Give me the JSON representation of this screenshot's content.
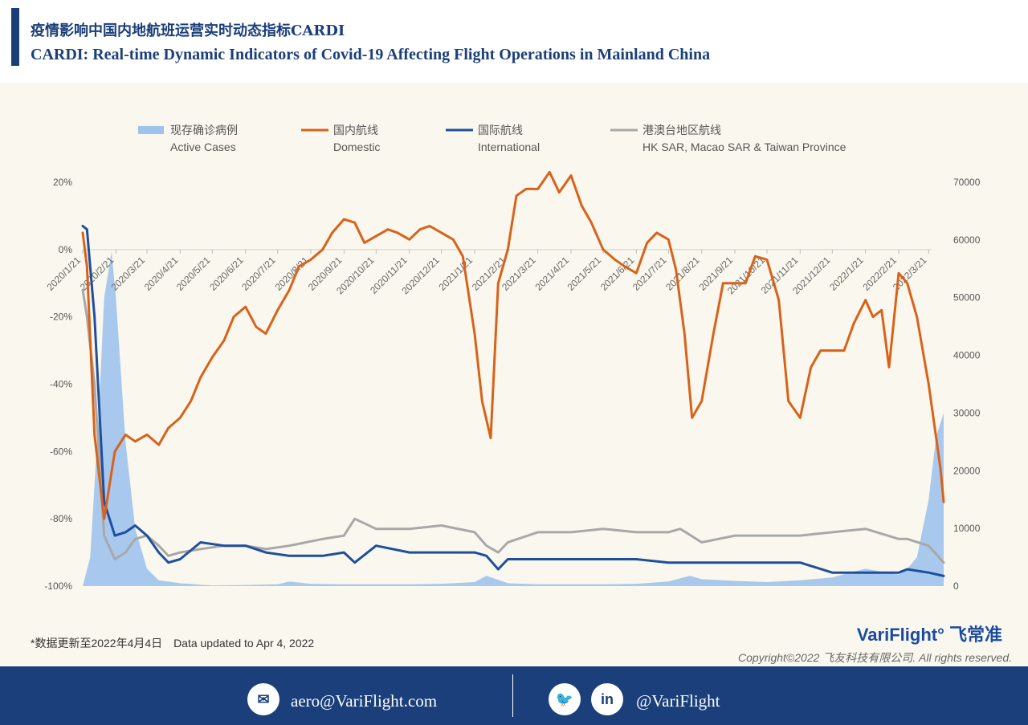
{
  "header": {
    "title_cn": "疫情影响中国内地航班运营实时动态指标CARDI",
    "title_en": "CARDI: Real-time Dynamic Indicators of Covid-19 Affecting Flight Operations in Mainland China"
  },
  "colors": {
    "active": "#9fc3ec",
    "domestic": "#d9621a",
    "international": "#1f4f9c",
    "regional": "#a8a8a8",
    "brand": "#1b3f7a"
  },
  "legend": [
    {
      "key": "active",
      "cn": "现存确诊病例",
      "en": "Active Cases"
    },
    {
      "key": "domestic",
      "cn": "国内航线",
      "en": "Domestic"
    },
    {
      "key": "international",
      "cn": "国际航线",
      "en": "International"
    },
    {
      "key": "regional",
      "cn": "港澳台地区航线",
      "en": "HK SAR, Macao SAR & Taiwan Province"
    }
  ],
  "chart_data": {
    "type": "line",
    "x_tick_labels": [
      "2020/1/21",
      "2020/2/21",
      "2020/3/21",
      "2020/4/21",
      "2020/5/21",
      "2020/6/21",
      "2020/7/21",
      "2020/8/21",
      "2020/9/21",
      "2020/10/21",
      "2020/11/21",
      "2020/12/21",
      "2021/1/21",
      "2021/2/21",
      "2021/3/21",
      "2021/4/21",
      "2021/5/21",
      "2021/6/21",
      "2021/7/21",
      "2021/8/21",
      "2021/9/21",
      "2021/10/21",
      "2021/11/21",
      "2021/12/21",
      "2022/1/21",
      "2022/2/21",
      "2022/3/21"
    ],
    "y_left_ticks": [
      "20%",
      "0%",
      "-20%",
      "-40%",
      "-60%",
      "-80%",
      "-100%"
    ],
    "y_left_range": [
      -100,
      20
    ],
    "y_right_ticks": [
      "70000",
      "60000",
      "50000",
      "40000",
      "30000",
      "20000",
      "10000",
      "0"
    ],
    "y_right_range": [
      0,
      70000
    ],
    "grid": false,
    "legend_position": "top",
    "series": [
      {
        "name": "国内航线 Domestic",
        "axis": "left",
        "x": [
          "2020/1/21",
          "2020/1/25",
          "2020/2/1",
          "2020/2/10",
          "2020/2/20",
          "2020/3/1",
          "2020/3/10",
          "2020/3/21",
          "2020/4/1",
          "2020/4/10",
          "2020/4/21",
          "2020/5/1",
          "2020/5/10",
          "2020/5/21",
          "2020/6/1",
          "2020/6/10",
          "2020/6/21",
          "2020/7/1",
          "2020/7/10",
          "2020/7/21",
          "2020/8/1",
          "2020/8/10",
          "2020/8/21",
          "2020/9/1",
          "2020/9/10",
          "2020/9/21",
          "2020/10/1",
          "2020/10/10",
          "2020/10/21",
          "2020/11/1",
          "2020/11/10",
          "2020/11/21",
          "2020/12/1",
          "2020/12/10",
          "2020/12/21",
          "2021/1/1",
          "2021/1/10",
          "2021/1/21",
          "2021/1/28",
          "2021/2/5",
          "2021/2/12",
          "2021/2/21",
          "2021/3/1",
          "2021/3/10",
          "2021/3/21",
          "2021/4/1",
          "2021/4/10",
          "2021/4/21",
          "2021/5/1",
          "2021/5/10",
          "2021/5/21",
          "2021/6/1",
          "2021/6/10",
          "2021/6/21",
          "2021/7/1",
          "2021/7/10",
          "2021/7/21",
          "2021/7/28",
          "2021/8/5",
          "2021/8/12",
          "2021/8/21",
          "2021/9/1",
          "2021/9/10",
          "2021/9/21",
          "2021/10/1",
          "2021/10/10",
          "2021/10/21",
          "2021/11/1",
          "2021/11/10",
          "2021/11/21",
          "2021/12/1",
          "2021/12/10",
          "2021/12/21",
          "2022/1/1",
          "2022/1/10",
          "2022/1/21",
          "2022/1/28",
          "2022/2/5",
          "2022/2/12",
          "2022/2/21",
          "2022/3/1",
          "2022/3/10",
          "2022/3/21",
          "2022/4/1",
          "2022/4/4"
        ],
        "values": [
          5,
          -5,
          -55,
          -80,
          -60,
          -55,
          -57,
          -55,
          -58,
          -53,
          -50,
          -45,
          -38,
          -32,
          -27,
          -20,
          -17,
          -23,
          -25,
          -18,
          -12,
          -5,
          -3,
          0,
          5,
          9,
          8,
          2,
          4,
          6,
          5,
          3,
          6,
          7,
          5,
          3,
          -2,
          -25,
          -45,
          -56,
          -10,
          0,
          16,
          18,
          18,
          23,
          17,
          22,
          13,
          8,
          0,
          -3,
          -5,
          -7,
          2,
          5,
          3,
          -6,
          -25,
          -50,
          -45,
          -25,
          -10,
          -10,
          -10,
          -2,
          -3,
          -15,
          -45,
          -50,
          -35,
          -30,
          -30,
          -30,
          -22,
          -15,
          -20,
          -18,
          -35,
          -7,
          -10,
          -20,
          -40,
          -65,
          -75
        ]
      },
      {
        "name": "国际航线 International",
        "axis": "left",
        "x": [
          "2020/1/21",
          "2020/1/25",
          "2020/2/1",
          "2020/2/10",
          "2020/2/20",
          "2020/3/1",
          "2020/3/10",
          "2020/3/21",
          "2020/4/1",
          "2020/4/10",
          "2020/4/21",
          "2020/5/10",
          "2020/6/1",
          "2020/6/21",
          "2020/7/10",
          "2020/8/1",
          "2020/9/1",
          "2020/9/21",
          "2020/10/1",
          "2020/10/21",
          "2020/11/21",
          "2020/12/21",
          "2021/1/21",
          "2021/2/1",
          "2021/2/12",
          "2021/2/21",
          "2021/3/21",
          "2021/4/21",
          "2021/5/21",
          "2021/6/21",
          "2021/7/21",
          "2021/8/21",
          "2021/9/21",
          "2021/10/21",
          "2021/11/21",
          "2021/12/21",
          "2022/1/21",
          "2022/2/21",
          "2022/3/1",
          "2022/3/21",
          "2022/4/4"
        ],
        "values": [
          7,
          6,
          -20,
          -75,
          -85,
          -84,
          -82,
          -85,
          -90,
          -93,
          -92,
          -87,
          -88,
          -88,
          -90,
          -91,
          -91,
          -90,
          -93,
          -88,
          -90,
          -90,
          -90,
          -91,
          -95,
          -92,
          -92,
          -92,
          -92,
          -92,
          -93,
          -93,
          -93,
          -93,
          -93,
          -96,
          -96,
          -96,
          -95,
          -96,
          -97
        ]
      },
      {
        "name": "港澳台地区航线 HK SAR, Macao SAR & Taiwan Province",
        "axis": "left",
        "x": [
          "2020/1/21",
          "2020/1/25",
          "2020/2/1",
          "2020/2/10",
          "2020/2/20",
          "2020/3/1",
          "2020/3/10",
          "2020/3/21",
          "2020/4/1",
          "2020/4/10",
          "2020/4/21",
          "2020/5/10",
          "2020/6/1",
          "2020/6/21",
          "2020/7/10",
          "2020/8/1",
          "2020/9/1",
          "2020/9/21",
          "2020/10/1",
          "2020/10/21",
          "2020/11/21",
          "2020/12/21",
          "2021/1/21",
          "2021/2/1",
          "2021/2/12",
          "2021/2/21",
          "2021/3/21",
          "2021/4/21",
          "2021/5/21",
          "2021/6/21",
          "2021/7/21",
          "2021/8/1",
          "2021/8/21",
          "2021/9/21",
          "2021/10/21",
          "2021/11/21",
          "2021/12/21",
          "2022/1/21",
          "2022/2/21",
          "2022/3/1",
          "2022/3/21",
          "2022/4/4"
        ],
        "values": [
          -12,
          -20,
          -40,
          -85,
          -92,
          -90,
          -86,
          -85,
          -88,
          -91,
          -90,
          -89,
          -88,
          -88,
          -89,
          -88,
          -86,
          -85,
          -80,
          -83,
          -83,
          -82,
          -84,
          -88,
          -90,
          -87,
          -84,
          -84,
          -83,
          -84,
          -84,
          -83,
          -87,
          -85,
          -85,
          -85,
          -84,
          -83,
          -86,
          -86,
          -88,
          -93
        ]
      },
      {
        "name": "现存确诊病例 Active Cases",
        "axis": "right",
        "x": [
          "2020/1/21",
          "2020/1/28",
          "2020/2/5",
          "2020/2/10",
          "2020/2/17",
          "2020/2/21",
          "2020/3/1",
          "2020/3/10",
          "2020/3/21",
          "2020/4/1",
          "2020/4/21",
          "2020/5/21",
          "2020/6/21",
          "2020/7/21",
          "2020/8/1",
          "2020/8/21",
          "2020/9/21",
          "2020/10/21",
          "2020/11/21",
          "2020/12/21",
          "2021/1/21",
          "2021/2/1",
          "2021/2/21",
          "2021/3/21",
          "2021/4/21",
          "2021/5/21",
          "2021/6/21",
          "2021/7/21",
          "2021/8/10",
          "2021/8/21",
          "2021/9/21",
          "2021/10/21",
          "2021/11/21",
          "2021/12/21",
          "2022/1/10",
          "2022/1/21",
          "2022/2/21",
          "2022/3/1",
          "2022/3/10",
          "2022/3/21",
          "2022/3/28",
          "2022/4/4"
        ],
        "values": [
          0,
          5000,
          30000,
          50000,
          58000,
          50000,
          25000,
          10000,
          3000,
          1000,
          500,
          100,
          200,
          300,
          800,
          400,
          300,
          300,
          300,
          400,
          700,
          1800,
          500,
          300,
          300,
          300,
          400,
          800,
          1800,
          1200,
          900,
          700,
          1000,
          1500,
          2500,
          3000,
          2000,
          3000,
          5000,
          15000,
          26000,
          30000
        ]
      }
    ]
  },
  "footer_note": {
    "cn": "*数据更新至2022年4月4日",
    "en": "Data updated to Apr 4, 2022"
  },
  "brand": {
    "logo_text": "VariFlight° 飞常准",
    "copyright": "Copyright©2022 飞友科技有限公司. All rights reserved."
  },
  "footer": {
    "email": "aero@VariFlight.com",
    "social": "@VariFlight",
    "email_icon": "mail-icon",
    "twitter_icon": "twitter-icon",
    "linkedin_icon": "linkedin-icon",
    "linkedin_glyph": "in"
  }
}
